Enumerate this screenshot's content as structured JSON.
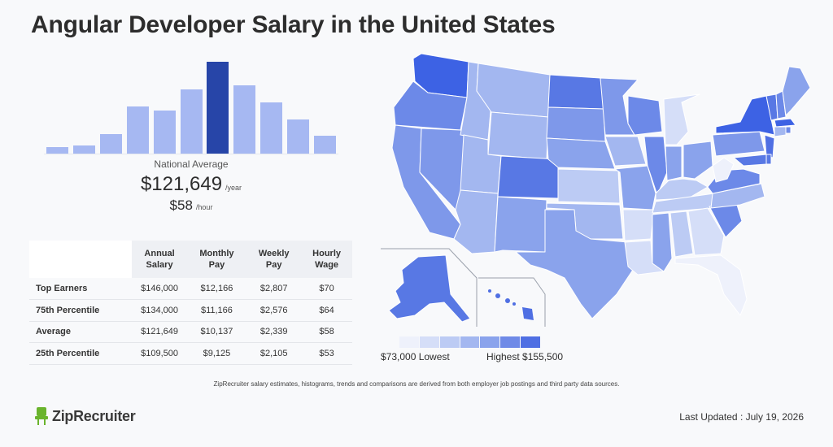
{
  "page": {
    "title": "Angular Developer Salary in the United States"
  },
  "histogram": {
    "bars": [
      0.08,
      0.1,
      0.22,
      0.52,
      0.47,
      0.7,
      1.0,
      0.75,
      0.56,
      0.38,
      0.2
    ],
    "active_index": 6,
    "colors": {
      "normal": "#a6b8f2",
      "active": "#2745a8"
    }
  },
  "national": {
    "label": "National Average",
    "annual": "$121,649",
    "annual_unit": "/year",
    "hourly": "$58",
    "hourly_unit": "/hour"
  },
  "table": {
    "headers": [
      {
        "line1": "Annual",
        "line2": "Salary"
      },
      {
        "line1": "Monthly",
        "line2": "Pay"
      },
      {
        "line1": "Weekly",
        "line2": "Pay"
      },
      {
        "line1": "Hourly",
        "line2": "Wage"
      }
    ],
    "rows": [
      {
        "label": "Top Earners",
        "values": [
          "$146,000",
          "$12,166",
          "$2,807",
          "$70"
        ]
      },
      {
        "label": "75th Percentile",
        "values": [
          "$134,000",
          "$11,166",
          "$2,576",
          "$64"
        ]
      },
      {
        "label": "Average",
        "values": [
          "$121,649",
          "$10,137",
          "$2,339",
          "$58"
        ]
      },
      {
        "label": "25th Percentile",
        "values": [
          "$109,500",
          "$9,125",
          "$2,105",
          "$53"
        ]
      }
    ]
  },
  "legend": {
    "colors": [
      "#eef1fb",
      "#d5def8",
      "#bccbf4",
      "#a3b7f0",
      "#8aa3ec",
      "#6f8ae7",
      "#4f6fe3"
    ],
    "low_label": "$73,000 Lowest",
    "high_label": "Highest $155,500"
  },
  "footer": {
    "note": "ZipRecruiter salary estimates, histograms, trends and comparisons are derived from both employer job postings and third party data sources.",
    "brand": "ZipRecruiter",
    "updated": "Last Updated : July 19, 2026"
  }
}
